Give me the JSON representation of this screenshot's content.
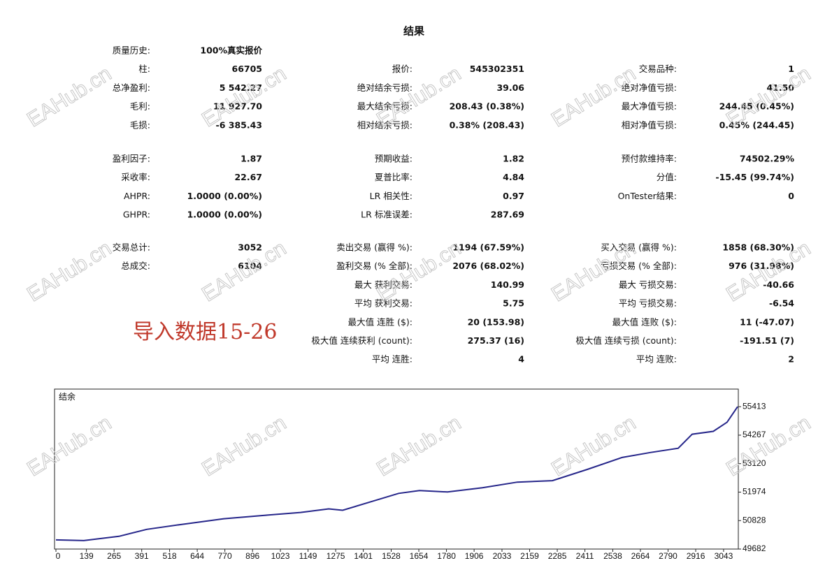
{
  "header": {
    "title": "结果"
  },
  "annotation": "导入数据15-26",
  "watermark": "EAHub.cn",
  "sections": [
    [
      [
        {
          "label": "质量历史:",
          "value": "100%真实报价"
        },
        null,
        null
      ],
      [
        {
          "label": "柱:",
          "value": "66705"
        },
        {
          "label": "报价:",
          "value": "545302351"
        },
        {
          "label": "交易品种:",
          "value": "1"
        }
      ],
      [
        {
          "label": "总净盈利:",
          "value": "5 542.27"
        },
        {
          "label": "绝对结余亏损:",
          "value": "39.06"
        },
        {
          "label": "绝对净值亏损:",
          "value": "41.50"
        }
      ],
      [
        {
          "label": "毛利:",
          "value": "11 927.70"
        },
        {
          "label": "最大结余亏损:",
          "value": "208.43 (0.38%)"
        },
        {
          "label": "最大净值亏损:",
          "value": "244.45 (0.45%)"
        }
      ],
      [
        {
          "label": "毛损:",
          "value": "-6 385.43"
        },
        {
          "label": "相对结余亏损:",
          "value": "0.38% (208.43)"
        },
        {
          "label": "相对净值亏损:",
          "value": "0.45% (244.45)"
        }
      ]
    ],
    [
      [
        {
          "label": "盈利因子:",
          "value": "1.87"
        },
        {
          "label": "预期收益:",
          "value": "1.82"
        },
        {
          "label": "预付款维持率:",
          "value": "74502.29%"
        }
      ],
      [
        {
          "label": "采收率:",
          "value": "22.67"
        },
        {
          "label": "夏普比率:",
          "value": "4.84"
        },
        {
          "label": "分值:",
          "value": "-15.45 (99.74%)"
        }
      ],
      [
        {
          "label": "AHPR:",
          "value": "1.0000 (0.00%)"
        },
        {
          "label": "LR 相关性:",
          "value": "0.97"
        },
        {
          "label": "OnTester结果:",
          "value": "0"
        }
      ],
      [
        {
          "label": "GHPR:",
          "value": "1.0000 (0.00%)"
        },
        {
          "label": "LR 标准误差:",
          "value": "287.69"
        },
        null
      ]
    ],
    [
      [
        {
          "label": "交易总计:",
          "value": "3052"
        },
        {
          "label": "卖出交易 (赢得 %):",
          "value": "1194 (67.59%)"
        },
        {
          "label": "买入交易 (赢得 %):",
          "value": "1858 (68.30%)"
        }
      ],
      [
        {
          "label": "总成交:",
          "value": "6104"
        },
        {
          "label": "盈利交易 (% 全部):",
          "value": "2076 (68.02%)"
        },
        {
          "label": "亏损交易 (% 全部):",
          "value": "976 (31.98%)"
        }
      ],
      [
        null,
        {
          "label": "最大 获利交易:",
          "value": "140.99"
        },
        {
          "label": "最大 亏损交易:",
          "value": "-40.66"
        }
      ],
      [
        null,
        {
          "label": "平均 获利交易:",
          "value": "5.75"
        },
        {
          "label": "平均 亏损交易:",
          "value": "-6.54"
        }
      ],
      [
        null,
        {
          "label": "最大值 连胜 ($):",
          "value": "20 (153.98)"
        },
        {
          "label": "最大值 连败 ($):",
          "value": "11 (-47.07)"
        }
      ],
      [
        null,
        {
          "label": "极大值 连续获利 (count):",
          "value": "275.37 (16)"
        },
        {
          "label": "极大值 连续亏损 (count):",
          "value": "-191.51 (7)"
        }
      ],
      [
        null,
        {
          "label": "平均 连胜:",
          "value": "4"
        },
        {
          "label": "平均 连败:",
          "value": "2"
        }
      ]
    ]
  ],
  "chart_data": {
    "type": "line",
    "title": "结余",
    "x": [
      0,
      127,
      287,
      414,
      574,
      765,
      956,
      1115,
      1243,
      1307,
      1434,
      1562,
      1657,
      1785,
      1944,
      2103,
      2263,
      2422,
      2581,
      2709,
      2836,
      2900,
      2996,
      3059,
      3107
    ],
    "series": [
      {
        "name": "结余",
        "color": "#26268a",
        "values": [
          50051,
          50022,
          50193,
          50476,
          50675,
          50902,
          51044,
          51157,
          51299,
          51242,
          51583,
          51923,
          52037,
          51980,
          52150,
          52377,
          52434,
          52888,
          53370,
          53569,
          53739,
          54306,
          54420,
          54789,
          55413
        ]
      }
    ],
    "xlim": [
      0,
      3107
    ],
    "ylim": [
      49682,
      56122
    ],
    "xticks": [
      0,
      139,
      265,
      391,
      518,
      644,
      770,
      896,
      1023,
      1149,
      1275,
      1401,
      1528,
      1654,
      1780,
      1906,
      2033,
      2159,
      2285,
      2411,
      2538,
      2664,
      2790,
      2916,
      3043
    ],
    "yticks": [
      49682,
      50828,
      51974,
      53120,
      54267,
      55413
    ]
  }
}
